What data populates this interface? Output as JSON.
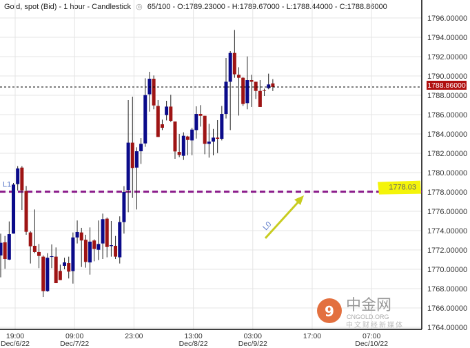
{
  "header": {
    "instrument": "Gold, spot (Bid) - 1 hour - Candlestick",
    "eye_icon": "eye-icon",
    "stats": "65/100 - O:1789.23000 - H:1789.67000 - L:1788.44000 - C:1788.86000"
  },
  "chart_data": {
    "type": "candlestick",
    "title": "Gold, spot (Bid) - 1 hour - Candlestick",
    "ylim": [
      1764,
      1797
    ],
    "yticks": [
      1764,
      1766,
      1768,
      1770,
      1772,
      1774,
      1776,
      1778,
      1780,
      1782,
      1784,
      1786,
      1788,
      1790,
      1792,
      1794,
      1796
    ],
    "ytick_labels": [
      "1764.00000",
      "1766.00000",
      "1768.00000",
      "1770.00000",
      "1772.00000",
      "1774.00000",
      "1776.00000",
      "1778.00000",
      "1780.00000",
      "1782.00000",
      "1784.00000",
      "1786.00000",
      "1788.00000",
      "1790.00000",
      "1792.00000",
      "1794.00000",
      "1796.00000"
    ],
    "xticks": [
      {
        "time": "19:00",
        "date": "Dec/6/22"
      },
      {
        "time": "09:00",
        "date": "Dec/7/22"
      },
      {
        "time": "23:00",
        "date": ""
      },
      {
        "time": "13:00",
        "date": "Dec/8/22"
      },
      {
        "time": "03:00",
        "date": "Dec/9/22"
      },
      {
        "time": "17:00",
        "date": ""
      },
      {
        "time": "07:00",
        "date": "Dec/10/22"
      }
    ],
    "grid": true,
    "colors": {
      "up": "#0b0b8a",
      "down": "#9e1414",
      "level_line": "#8a1a8a",
      "highlight": "#f4f40a",
      "price_label": "#b01010",
      "arrow": "#c8cc20"
    },
    "ohlc_fields": [
      "open",
      "high",
      "low",
      "close"
    ],
    "candles": [
      [
        1771.43,
        1773.69,
        1769.17,
        1772.74
      ],
      [
        1772.79,
        1773.45,
        1770.05,
        1771.07
      ],
      [
        1771.0,
        1774.95,
        1770.95,
        1773.64
      ],
      [
        1773.69,
        1778.93,
        1773.69,
        1778.76
      ],
      [
        1778.81,
        1780.67,
        1778.14,
        1780.43
      ],
      [
        1780.52,
        1780.67,
        1776.14,
        1778.17
      ],
      [
        1778.1,
        1778.62,
        1773.57,
        1773.88
      ],
      [
        1773.81,
        1773.93,
        1770.6,
        1772.38
      ],
      [
        1772.43,
        1776.19,
        1771.67,
        1771.79
      ],
      [
        1771.79,
        1772.62,
        1770.12,
        1771.38
      ],
      [
        1771.31,
        1771.43,
        1767.14,
        1767.74
      ],
      [
        1767.74,
        1771.67,
        1767.67,
        1771.19
      ],
      [
        1771.3,
        1772.57,
        1770.12,
        1771.35
      ],
      [
        1771.31,
        1772.26,
        1768.57,
        1768.57
      ],
      [
        1769.83,
        1770.48,
        1768.88,
        1768.88
      ],
      [
        1770.36,
        1771.19,
        1770.0,
        1770.71
      ],
      [
        1770.64,
        1771.31,
        1769.05,
        1769.76
      ],
      [
        1769.81,
        1773.81,
        1768.52,
        1773.29
      ],
      [
        1773.29,
        1775.05,
        1772.67,
        1773.86
      ],
      [
        1773.81,
        1774.29,
        1770.24,
        1772.98
      ],
      [
        1773.05,
        1773.57,
        1770.17,
        1770.76
      ],
      [
        1770.71,
        1774.33,
        1769.45,
        1772.86
      ],
      [
        1772.98,
        1773.1,
        1770.83,
        1772.1
      ],
      [
        1772.02,
        1775.05,
        1770.95,
        1772.62
      ],
      [
        1772.67,
        1775.76,
        1771.07,
        1775.19
      ],
      [
        1775.24,
        1775.36,
        1771.24,
        1772.31
      ],
      [
        1772.4,
        1775.0,
        1771.31,
        1772.5
      ],
      [
        1772.43,
        1773.45,
        1771.07,
        1771.31
      ],
      [
        1771.24,
        1775.48,
        1770.6,
        1774.88
      ],
      [
        1774.88,
        1778.6,
        1773.69,
        1778.0
      ],
      [
        1778.21,
        1787.5,
        1775.9,
        1783.1
      ],
      [
        1783.1,
        1787.86,
        1777.38,
        1780.48
      ],
      [
        1780.52,
        1782.62,
        1776.19,
        1782.21
      ],
      [
        1782.21,
        1783.57,
        1780.9,
        1782.98
      ],
      [
        1783.02,
        1789.76,
        1782.67,
        1788.02
      ],
      [
        1788.1,
        1790.43,
        1786.31,
        1789.71
      ],
      [
        1789.71,
        1790.05,
        1786.55,
        1786.95
      ],
      [
        1786.9,
        1787.5,
        1783.69,
        1783.69
      ],
      [
        1785.0,
        1785.48,
        1784.4,
        1784.64
      ],
      [
        1785.95,
        1787.43,
        1785.4,
        1786.83
      ],
      [
        1786.83,
        1788.05,
        1785.24,
        1785.36
      ],
      [
        1785.29,
        1785.29,
        1781.43,
        1782.19
      ],
      [
        1782.14,
        1784.0,
        1781.6,
        1781.83
      ],
      [
        1781.74,
        1784.17,
        1781.31,
        1783.81
      ],
      [
        1783.74,
        1783.81,
        1781.79,
        1783.38
      ],
      [
        1783.33,
        1784.64,
        1781.79,
        1784.45
      ],
      [
        1784.4,
        1786.86,
        1783.52,
        1786.07
      ],
      [
        1786.07,
        1786.98,
        1784.76,
        1785.88
      ],
      [
        1785.88,
        1785.88,
        1781.9,
        1782.98
      ],
      [
        1782.98,
        1785.05,
        1781.55,
        1783.21
      ],
      [
        1783.21,
        1784.52,
        1781.79,
        1783.62
      ],
      [
        1783.62,
        1785.43,
        1782.02,
        1783.5
      ],
      [
        1783.5,
        1786.9,
        1783.33,
        1786.07
      ],
      [
        1786.07,
        1791.86,
        1785.6,
        1789.4
      ],
      [
        1789.4,
        1792.57,
        1784.4,
        1792.38
      ],
      [
        1792.38,
        1794.76,
        1789.81,
        1790.17
      ],
      [
        1790.12,
        1790.9,
        1785.9,
        1789.81
      ],
      [
        1789.81,
        1789.88,
        1786.9,
        1787.1
      ],
      [
        1787.19,
        1792.02,
        1786.55,
        1789.57
      ],
      [
        1789.57,
        1790.12,
        1786.79,
        1789.4
      ],
      [
        1789.4,
        1789.4,
        1787.62,
        1788.45
      ],
      [
        1788.45,
        1789.57,
        1786.79,
        1786.79
      ],
      [
        1788.52,
        1788.69,
        1787.93,
        1788.48
      ],
      [
        1788.74,
        1790.24,
        1788.62,
        1789.12
      ],
      [
        1789.23,
        1789.67,
        1788.44,
        1788.86
      ]
    ],
    "current_price": 1788.86,
    "current_price_label": "1788.86000",
    "level_lines": [
      {
        "name": "L1",
        "value": 1778.03,
        "label": "1778.03"
      }
    ],
    "annotations": [
      {
        "label": "L0",
        "type": "arrow"
      }
    ]
  },
  "watermark": {
    "text": "中金网",
    "sub": "CNGOLD.ORG",
    "tagline": "中文财经新媒体"
  }
}
